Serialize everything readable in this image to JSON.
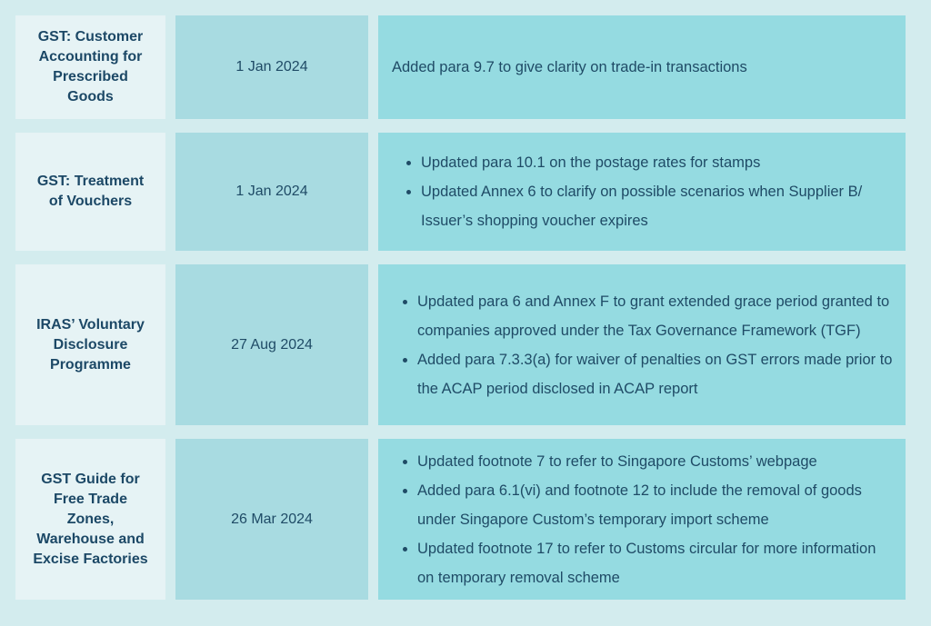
{
  "rows": [
    {
      "title": "GST: Customer Accounting for Prescribed Goods",
      "date": "1 Jan 2024",
      "text": "Added para 9.7 to give clarity on trade-in transactions"
    },
    {
      "title": "GST: Treatment of Vouchers",
      "date": "1 Jan 2024",
      "bullets": [
        "Updated para 10.1 on the postage rates for stamps",
        "Updated Annex 6 to clarify on possible scenarios when Supplier B/ Issuer’s shopping voucher expires"
      ]
    },
    {
      "title": "IRAS’ Voluntary Disclosure Programme",
      "date": "27 Aug 2024",
      "bullets": [
        "Updated para 6 and Annex F to grant extended grace period granted to companies approved under the Tax Governance Framework (TGF)",
        "Added para 7.3.3(a) for waiver of penalties on GST errors made prior to the ACAP period disclosed in ACAP report"
      ]
    },
    {
      "title": "GST Guide for Free Trade Zones, Warehouse and Excise Factories",
      "date": "26 Mar 2024",
      "bullets": [
        "Updated footnote 7 to refer to Singapore Customs’ webpage",
        "Added para 6.1(vi) and footnote 12 to include the removal of goods under Singapore Custom’s temporary import scheme",
        "Updated footnote 17 to refer to Customs circular for more information on temporary removal scheme"
      ]
    }
  ]
}
